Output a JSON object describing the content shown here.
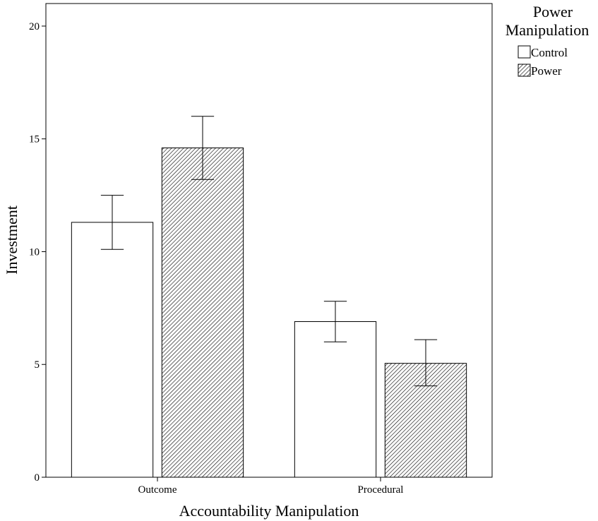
{
  "chart_data": {
    "type": "bar",
    "categories": [
      "Outcome",
      "Procedural"
    ],
    "series": [
      {
        "name": "Control",
        "pattern": "none",
        "values": [
          11.3,
          6.9
        ],
        "error_low": [
          10.1,
          6.0
        ],
        "error_high": [
          12.5,
          7.8
        ]
      },
      {
        "name": "Power",
        "pattern": "diagonal-hatch",
        "values": [
          14.6,
          5.05
        ],
        "error_low": [
          13.2,
          4.05
        ],
        "error_high": [
          16.0,
          6.1
        ]
      }
    ],
    "title": "",
    "xlabel": "Accountability Manipulation",
    "ylabel": "Investment",
    "ylim": [
      0,
      21
    ],
    "yticks": [
      0,
      5,
      10,
      15,
      20
    ],
    "grid": false,
    "legend": {
      "title_line1": "Power",
      "title_line2": "Manipulation",
      "placement": "outside-top-right"
    },
    "colors": {
      "bar_fill": "#ffffff",
      "stroke": "#000000",
      "hatch": "#000000"
    }
  }
}
